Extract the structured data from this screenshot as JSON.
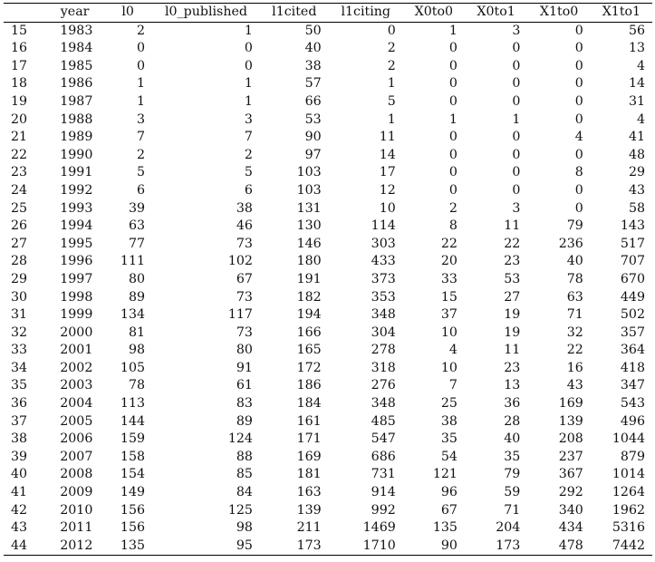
{
  "table": {
    "columns": [
      "",
      "year",
      "l0",
      "l0_published",
      "l1cited",
      "l1citing",
      "X0to0",
      "X0to1",
      "X1to0",
      "X1to1"
    ],
    "rows": [
      [
        "15",
        "1983",
        "2",
        "1",
        "50",
        "0",
        "1",
        "3",
        "0",
        "56"
      ],
      [
        "16",
        "1984",
        "0",
        "0",
        "40",
        "2",
        "0",
        "0",
        "0",
        "13"
      ],
      [
        "17",
        "1985",
        "0",
        "0",
        "38",
        "2",
        "0",
        "0",
        "0",
        "4"
      ],
      [
        "18",
        "1986",
        "1",
        "1",
        "57",
        "1",
        "0",
        "0",
        "0",
        "14"
      ],
      [
        "19",
        "1987",
        "1",
        "1",
        "66",
        "5",
        "0",
        "0",
        "0",
        "31"
      ],
      [
        "20",
        "1988",
        "3",
        "3",
        "53",
        "1",
        "1",
        "1",
        "0",
        "4"
      ],
      [
        "21",
        "1989",
        "7",
        "7",
        "90",
        "11",
        "0",
        "0",
        "4",
        "41"
      ],
      [
        "22",
        "1990",
        "2",
        "2",
        "97",
        "14",
        "0",
        "0",
        "0",
        "48"
      ],
      [
        "23",
        "1991",
        "5",
        "5",
        "103",
        "17",
        "0",
        "0",
        "8",
        "29"
      ],
      [
        "24",
        "1992",
        "6",
        "6",
        "103",
        "12",
        "0",
        "0",
        "0",
        "43"
      ],
      [
        "25",
        "1993",
        "39",
        "38",
        "131",
        "10",
        "2",
        "3",
        "0",
        "58"
      ],
      [
        "26",
        "1994",
        "63",
        "46",
        "130",
        "114",
        "8",
        "11",
        "79",
        "143"
      ],
      [
        "27",
        "1995",
        "77",
        "73",
        "146",
        "303",
        "22",
        "22",
        "236",
        "517"
      ],
      [
        "28",
        "1996",
        "111",
        "102",
        "180",
        "433",
        "20",
        "23",
        "40",
        "707"
      ],
      [
        "29",
        "1997",
        "80",
        "67",
        "191",
        "373",
        "33",
        "53",
        "78",
        "670"
      ],
      [
        "30",
        "1998",
        "89",
        "73",
        "182",
        "353",
        "15",
        "27",
        "63",
        "449"
      ],
      [
        "31",
        "1999",
        "134",
        "117",
        "194",
        "348",
        "37",
        "19",
        "71",
        "502"
      ],
      [
        "32",
        "2000",
        "81",
        "73",
        "166",
        "304",
        "10",
        "19",
        "32",
        "357"
      ],
      [
        "33",
        "2001",
        "98",
        "80",
        "165",
        "278",
        "4",
        "11",
        "22",
        "364"
      ],
      [
        "34",
        "2002",
        "105",
        "91",
        "172",
        "318",
        "10",
        "23",
        "16",
        "418"
      ],
      [
        "35",
        "2003",
        "78",
        "61",
        "186",
        "276",
        "7",
        "13",
        "43",
        "347"
      ],
      [
        "36",
        "2004",
        "113",
        "83",
        "184",
        "348",
        "25",
        "36",
        "169",
        "543"
      ],
      [
        "37",
        "2005",
        "144",
        "89",
        "161",
        "485",
        "38",
        "28",
        "139",
        "496"
      ],
      [
        "38",
        "2006",
        "159",
        "124",
        "171",
        "547",
        "35",
        "40",
        "208",
        "1044"
      ],
      [
        "39",
        "2007",
        "158",
        "88",
        "169",
        "686",
        "54",
        "35",
        "237",
        "879"
      ],
      [
        "40",
        "2008",
        "154",
        "85",
        "181",
        "731",
        "121",
        "79",
        "367",
        "1014"
      ],
      [
        "41",
        "2009",
        "149",
        "84",
        "163",
        "914",
        "96",
        "59",
        "292",
        "1264"
      ],
      [
        "42",
        "2010",
        "156",
        "125",
        "139",
        "992",
        "67",
        "71",
        "340",
        "1962"
      ],
      [
        "43",
        "2011",
        "156",
        "98",
        "211",
        "1469",
        "135",
        "204",
        "434",
        "5316"
      ],
      [
        "44",
        "2012",
        "135",
        "95",
        "173",
        "1710",
        "90",
        "173",
        "478",
        "7442"
      ]
    ]
  }
}
